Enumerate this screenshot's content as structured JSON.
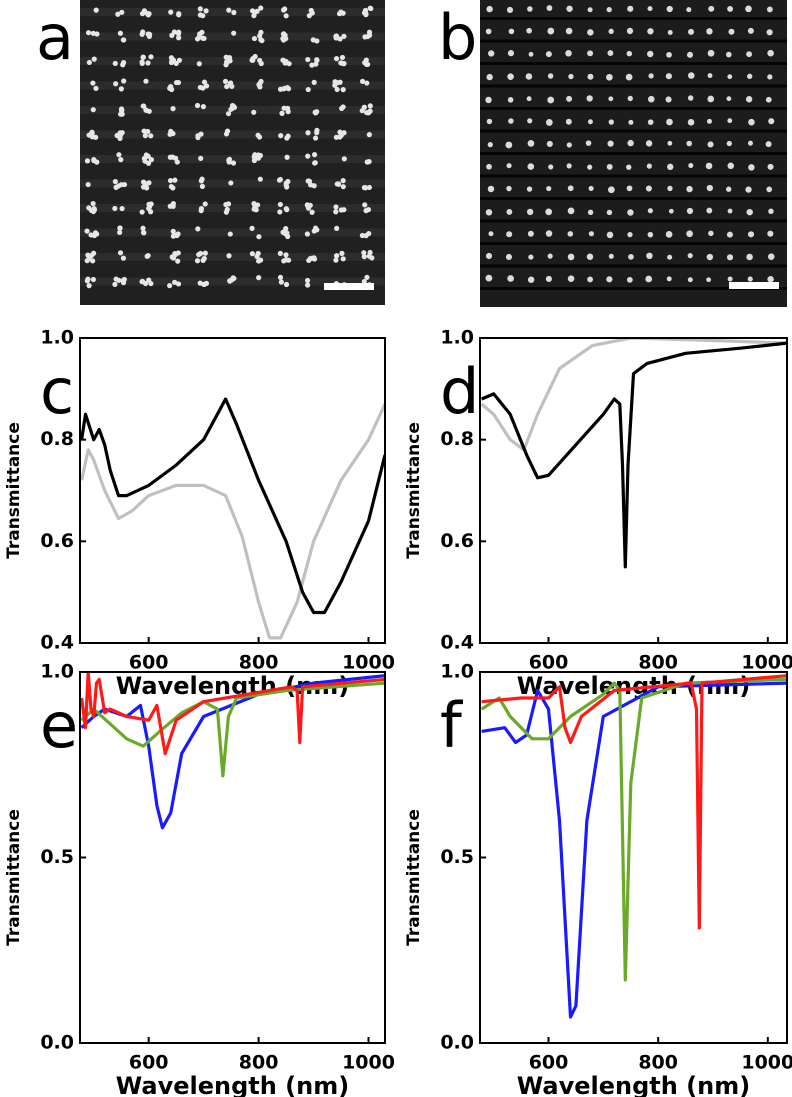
{
  "images": [
    {
      "panel_label": "a"
    },
    {
      "panel_label": "b"
    }
  ],
  "chart_data": [
    {
      "type": "line",
      "panel_label": "c",
      "x_label": "Wavelength (nm)",
      "y_label": "Transmittance",
      "xlim": [
        475,
        1030
      ],
      "ylim": [
        0.4,
        1.0
      ],
      "xticks": [
        600,
        800,
        1000
      ],
      "yticks": [
        0.4,
        0.6,
        0.8,
        {
          "value": 1,
          "label": "1.0"
        }
      ],
      "series": [
        {
          "color": "#c0c0c0",
          "x": [
            478,
            490,
            500,
            510,
            520,
            545,
            570,
            600,
            650,
            700,
            740,
            770,
            800,
            820,
            840,
            870,
            900,
            950,
            1000,
            1030
          ],
          "values": [
            0.72,
            0.78,
            0.76,
            0.73,
            0.7,
            0.645,
            0.66,
            0.69,
            0.71,
            0.71,
            0.69,
            0.61,
            0.48,
            0.41,
            0.41,
            0.48,
            0.6,
            0.72,
            0.8,
            0.87
          ]
        },
        {
          "color": "#000000",
          "x": [
            478,
            485,
            500,
            510,
            520,
            530,
            545,
            560,
            600,
            650,
            700,
            740,
            760,
            800,
            850,
            880,
            900,
            920,
            950,
            1000,
            1030
          ],
          "values": [
            0.8,
            0.85,
            0.8,
            0.82,
            0.79,
            0.74,
            0.69,
            0.69,
            0.71,
            0.75,
            0.8,
            0.88,
            0.83,
            0.72,
            0.6,
            0.5,
            0.46,
            0.46,
            0.52,
            0.64,
            0.77
          ]
        }
      ]
    },
    {
      "type": "line",
      "panel_label": "d",
      "x_label": "Wavelength (nm)",
      "y_label": "Transmittance",
      "xlim": [
        475,
        1035
      ],
      "ylim": [
        0.4,
        1.0
      ],
      "xticks": [
        600,
        800,
        1000
      ],
      "yticks": [
        0.4,
        0.6,
        0.8,
        {
          "value": 1,
          "label": "1.0"
        }
      ],
      "series": [
        {
          "color": "#c0c0c0",
          "x": [
            478,
            500,
            530,
            555,
            580,
            620,
            680,
            750,
            900,
            1035
          ],
          "values": [
            0.87,
            0.85,
            0.8,
            0.78,
            0.85,
            0.94,
            0.985,
            1.0,
            0.995,
            0.99
          ]
        },
        {
          "color": "#000000",
          "x": [
            478,
            500,
            530,
            560,
            580,
            600,
            650,
            700,
            720,
            730,
            735,
            740,
            745,
            755,
            780,
            850,
            950,
            1035
          ],
          "values": [
            0.88,
            0.89,
            0.85,
            0.77,
            0.725,
            0.73,
            0.79,
            0.85,
            0.88,
            0.87,
            0.75,
            0.55,
            0.75,
            0.93,
            0.95,
            0.97,
            0.98,
            0.99
          ]
        }
      ]
    },
    {
      "type": "line",
      "panel_label": "e",
      "x_label": "Wavelength (nm)",
      "y_label": "Transmittance",
      "xlim": [
        475,
        1030
      ],
      "ylim": [
        0,
        1.0
      ],
      "xticks": [
        600,
        800,
        1000
      ],
      "yticks": [
        {
          "value": 0,
          "label": "0.0"
        },
        0.5,
        {
          "value": 1,
          "label": "1.0"
        }
      ],
      "series": [
        {
          "color": "#1a1aff",
          "x": [
            478,
            500,
            520,
            560,
            585,
            600,
            615,
            625,
            640,
            660,
            700,
            800,
            900,
            1030
          ],
          "values": [
            0.85,
            0.88,
            0.9,
            0.88,
            0.91,
            0.8,
            0.64,
            0.58,
            0.62,
            0.78,
            0.88,
            0.94,
            0.97,
            0.99
          ]
        },
        {
          "color": "#6aaa2a",
          "x": [
            478,
            500,
            530,
            560,
            590,
            620,
            660,
            700,
            725,
            735,
            745,
            760,
            850,
            1030
          ],
          "values": [
            0.87,
            0.9,
            0.86,
            0.82,
            0.8,
            0.84,
            0.89,
            0.92,
            0.9,
            0.72,
            0.88,
            0.93,
            0.95,
            0.97
          ]
        },
        {
          "color": "#ff1a1a",
          "x": [
            478,
            485,
            490,
            495,
            500,
            505,
            510,
            520,
            530,
            560,
            600,
            615,
            630,
            650,
            700,
            860,
            870,
            875,
            880,
            1030
          ],
          "values": [
            0.93,
            0.85,
            1.0,
            0.9,
            0.88,
            0.97,
            0.98,
            0.89,
            0.9,
            0.88,
            0.87,
            0.91,
            0.78,
            0.87,
            0.92,
            0.96,
            0.95,
            0.81,
            0.96,
            0.98
          ]
        }
      ]
    },
    {
      "type": "line",
      "panel_label": "f",
      "x_label": "Wavelength (nm)",
      "y_label": "Transmittance",
      "xlim": [
        475,
        1035
      ],
      "ylim": [
        0,
        1.0
      ],
      "xticks": [
        600,
        800,
        1000
      ],
      "yticks": [
        {
          "value": 0,
          "label": "0.0"
        },
        0.5,
        {
          "value": 1,
          "label": "1.0"
        }
      ],
      "series": [
        {
          "color": "#1a1aff",
          "x": [
            478,
            520,
            540,
            560,
            580,
            600,
            620,
            640,
            650,
            670,
            700,
            800,
            1035
          ],
          "values": [
            0.84,
            0.85,
            0.81,
            0.83,
            0.95,
            0.9,
            0.6,
            0.07,
            0.1,
            0.6,
            0.88,
            0.96,
            0.97
          ]
        },
        {
          "color": "#6aaa2a",
          "x": [
            478,
            510,
            530,
            570,
            600,
            640,
            700,
            720,
            730,
            740,
            750,
            770,
            850,
            1035
          ],
          "values": [
            0.9,
            0.93,
            0.88,
            0.82,
            0.82,
            0.88,
            0.94,
            0.97,
            0.95,
            0.17,
            0.7,
            0.93,
            0.97,
            0.98
          ]
        },
        {
          "color": "#ff1a1a",
          "x": [
            478,
            550,
            600,
            620,
            630,
            640,
            660,
            720,
            860,
            870,
            875,
            880,
            1035
          ],
          "values": [
            0.92,
            0.93,
            0.93,
            0.96,
            0.85,
            0.81,
            0.88,
            0.95,
            0.97,
            0.9,
            0.31,
            0.97,
            0.99
          ]
        }
      ]
    }
  ]
}
